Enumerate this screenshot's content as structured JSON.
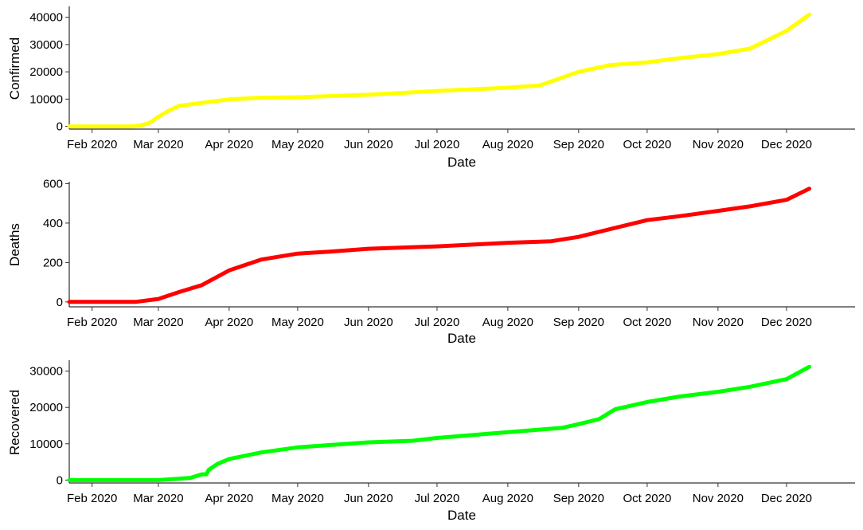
{
  "chart_data": [
    {
      "type": "line",
      "xlabel": "Date",
      "ylabel": "Confirmed",
      "xlim": [
        "2020-01-22",
        "2020-12-31"
      ],
      "ylim": [
        -1000,
        44000
      ],
      "x_ticks": [
        "2020-02-01",
        "2020-03-01",
        "2020-04-01",
        "2020-05-01",
        "2020-06-01",
        "2020-07-01",
        "2020-08-01",
        "2020-09-01",
        "2020-10-01",
        "2020-11-01",
        "2020-12-01"
      ],
      "x_tick_labels": [
        "Feb 2020",
        "Mar 2020",
        "Apr 2020",
        "May 2020",
        "Jun 2020",
        "Jul 2020",
        "Aug 2020",
        "Sep 2020",
        "Oct 2020",
        "Nov 2020",
        "Dec 2020"
      ],
      "y_ticks": [
        0,
        10000,
        20000,
        30000,
        40000
      ],
      "y_tick_labels": [
        "0",
        "10000",
        "20000",
        "30000",
        "40000"
      ],
      "color": "#FFFF00",
      "grid": false,
      "series": [
        {
          "x": [
            "2020-01-22",
            "2020-02-01",
            "2020-02-10",
            "2020-02-18",
            "2020-02-22",
            "2020-02-26",
            "2020-03-01",
            "2020-03-05",
            "2020-03-10",
            "2020-03-20",
            "2020-04-01",
            "2020-04-15",
            "2020-05-01",
            "2020-06-01",
            "2020-07-01",
            "2020-08-01",
            "2020-08-15",
            "2020-09-01",
            "2020-09-15",
            "2020-10-01",
            "2020-10-15",
            "2020-11-01",
            "2020-11-15",
            "2020-12-01",
            "2020-12-11"
          ],
          "y": [
            0,
            0,
            0,
            0,
            300,
            1200,
            3500,
            5500,
            7500,
            8600,
            9900,
            10500,
            10700,
            11600,
            13000,
            14200,
            15000,
            20000,
            22500,
            23500,
            25000,
            26500,
            28500,
            35000,
            41000
          ]
        }
      ]
    },
    {
      "type": "line",
      "xlabel": "Date",
      "ylabel": "Deaths",
      "xlim": [
        "2020-01-22",
        "2020-12-31"
      ],
      "ylim": [
        -25,
        610
      ],
      "x_ticks": [
        "2020-02-01",
        "2020-03-01",
        "2020-04-01",
        "2020-05-01",
        "2020-06-01",
        "2020-07-01",
        "2020-08-01",
        "2020-09-01",
        "2020-10-01",
        "2020-11-01",
        "2020-12-01"
      ],
      "x_tick_labels": [
        "Feb 2020",
        "Mar 2020",
        "Apr 2020",
        "May 2020",
        "Jun 2020",
        "Jul 2020",
        "Aug 2020",
        "Sep 2020",
        "Oct 2020",
        "Nov 2020",
        "Dec 2020"
      ],
      "y_ticks": [
        0,
        200,
        400,
        600
      ],
      "y_tick_labels": [
        "0",
        "200",
        "400",
        "600"
      ],
      "color": "#FF0000",
      "grid": false,
      "series": [
        {
          "x": [
            "2020-01-22",
            "2020-02-01",
            "2020-02-10",
            "2020-02-20",
            "2020-03-01",
            "2020-03-10",
            "2020-03-20",
            "2020-04-01",
            "2020-04-15",
            "2020-05-01",
            "2020-05-15",
            "2020-06-01",
            "2020-07-01",
            "2020-08-01",
            "2020-08-20",
            "2020-09-01",
            "2020-09-15",
            "2020-10-01",
            "2020-10-15",
            "2020-11-01",
            "2020-11-15",
            "2020-12-01",
            "2020-12-11"
          ],
          "y": [
            0,
            0,
            0,
            0,
            15,
            50,
            85,
            160,
            215,
            245,
            255,
            270,
            282,
            300,
            308,
            330,
            370,
            415,
            435,
            462,
            485,
            518,
            575
          ]
        }
      ]
    },
    {
      "type": "line",
      "xlabel": "Date",
      "ylabel": "Recovered",
      "xlim": [
        "2020-01-22",
        "2020-12-31"
      ],
      "ylim": [
        -800,
        33000
      ],
      "x_ticks": [
        "2020-02-01",
        "2020-03-01",
        "2020-04-01",
        "2020-05-01",
        "2020-06-01",
        "2020-07-01",
        "2020-08-01",
        "2020-09-01",
        "2020-10-01",
        "2020-11-01",
        "2020-12-01"
      ],
      "x_tick_labels": [
        "Feb 2020",
        "Mar 2020",
        "Apr 2020",
        "May 2020",
        "Jun 2020",
        "Jul 2020",
        "Aug 2020",
        "Sep 2020",
        "Oct 2020",
        "Nov 2020",
        "Dec 2020"
      ],
      "y_ticks": [
        0,
        10000,
        20000,
        30000
      ],
      "y_tick_labels": [
        "0",
        "10000",
        "20000",
        "30000"
      ],
      "color": "#00FF00",
      "grid": false,
      "series": [
        {
          "x": [
            "2020-01-22",
            "2020-02-01",
            "2020-03-01",
            "2020-03-15",
            "2020-03-20",
            "2020-03-22",
            "2020-03-23",
            "2020-03-27",
            "2020-04-01",
            "2020-04-15",
            "2020-05-01",
            "2020-06-01",
            "2020-06-20",
            "2020-07-01",
            "2020-08-01",
            "2020-08-25",
            "2020-09-01",
            "2020-09-10",
            "2020-09-17",
            "2020-10-01",
            "2020-10-15",
            "2020-11-01",
            "2020-11-15",
            "2020-12-01",
            "2020-12-11"
          ],
          "y": [
            0,
            0,
            0,
            600,
            1600,
            1600,
            2800,
            4500,
            5800,
            7600,
            9000,
            10400,
            10800,
            11600,
            13200,
            14400,
            15400,
            16800,
            19500,
            21500,
            23000,
            24300,
            25700,
            27800,
            31200
          ]
        }
      ]
    }
  ]
}
